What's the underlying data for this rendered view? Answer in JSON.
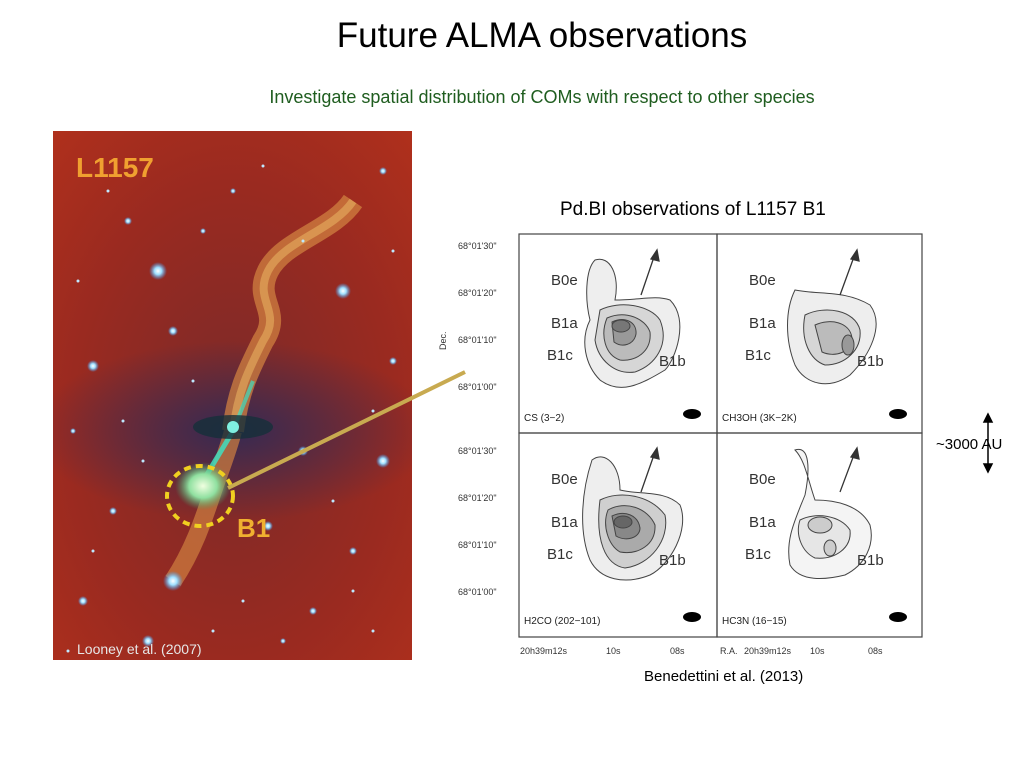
{
  "slide": {
    "title": "Future ALMA observations",
    "subtitle": "Investigate spatial distribution of COMs with respect to other species"
  },
  "left_image": {
    "label_region": "L1157",
    "label_knot": "B1",
    "credit": "Looney et al. (2007)"
  },
  "right_figure": {
    "title": "Pd.BI observations of L1157 B1",
    "credit": "Benedettini et al. (2013)",
    "ylabel": "Dec.",
    "xlabel": "R.A.",
    "dec_ticks": [
      "68°01'30\"",
      "68°01'20\"",
      "68°01'10\"",
      "68°01'00\""
    ],
    "ra_ticks": [
      "20h39m12s",
      "10s",
      "08s"
    ],
    "ra_ticks_b": [
      "20h39m12s",
      "10s",
      "08s"
    ],
    "panel_labels": [
      "B0e",
      "B1a",
      "B1c",
      "B1b"
    ],
    "panels": [
      {
        "molecule": "CS (3−2)"
      },
      {
        "molecule": "CH3OH (3K−2K)"
      },
      {
        "molecule": "H2CO (202−101)"
      },
      {
        "molecule": "HC3N (16−15)"
      }
    ]
  },
  "scale_bar": {
    "label": "~3000 AU"
  }
}
